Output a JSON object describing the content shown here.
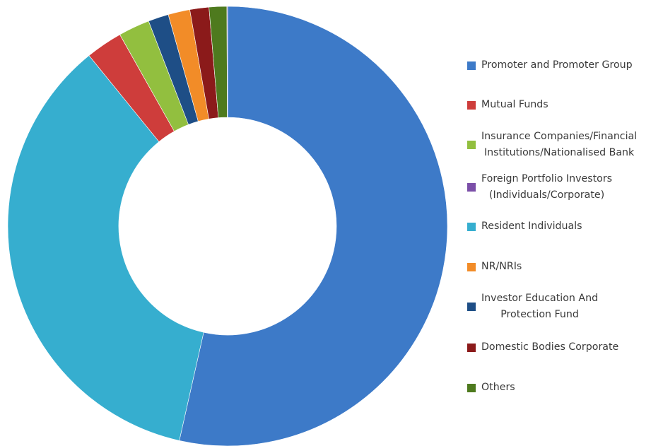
{
  "chart_data": {
    "type": "pie",
    "donut": true,
    "legend_position": "right",
    "slices": [
      {
        "label": "Promoter and Promoter Group",
        "value": 53.5,
        "color": "#3D7AC8"
      },
      {
        "label": "Mutual Funds",
        "value": 2.7,
        "color": "#CE3D3B"
      },
      {
        "label": "Insurance Companies/Financial Institutions/Nationalised Bank",
        "value": 2.3,
        "color": "#92BF3F"
      },
      {
        "label": "Foreign Portfolio Investors (Individuals/Corporate)",
        "value": 0.05,
        "color": "#7B4FA8"
      },
      {
        "label": "Resident Individuals",
        "value": 35.6,
        "color": "#36AECF"
      },
      {
        "label": "NR/NRIs",
        "value": 1.6,
        "color": "#F28C28"
      },
      {
        "label": "Investor Education And Protection Fund",
        "value": 1.5,
        "color": "#1E4E86"
      },
      {
        "label": "Domestic Bodies Corporate",
        "value": 1.4,
        "color": "#8B1A1A"
      },
      {
        "label": "Others",
        "value": 1.3,
        "color": "#4E7A1E"
      }
    ],
    "draw_order": [
      0,
      4,
      1,
      2,
      6,
      5,
      7,
      8,
      3
    ]
  },
  "legend": {
    "items": [
      {
        "label": "Promoter and Promoter Group",
        "color": "#3D7AC8"
      },
      {
        "label": "Mutual Funds",
        "color": "#CE3D3B"
      },
      {
        "label": "Insurance Companies/Financial\nInstitutions/Nationalised Bank",
        "color": "#92BF3F"
      },
      {
        "label": "Foreign Portfolio Investors\n(Individuals/Corporate)",
        "color": "#7B4FA8"
      },
      {
        "label": "Resident Individuals",
        "color": "#36AECF"
      },
      {
        "label": "NR/NRIs",
        "color": "#F28C28"
      },
      {
        "label": "Investor Education And\nProtection Fund",
        "color": "#1E4E86"
      },
      {
        "label": "Domestic Bodies Corporate",
        "color": "#8B1A1A"
      },
      {
        "label": "Others",
        "color": "#4E7A1E"
      }
    ]
  }
}
